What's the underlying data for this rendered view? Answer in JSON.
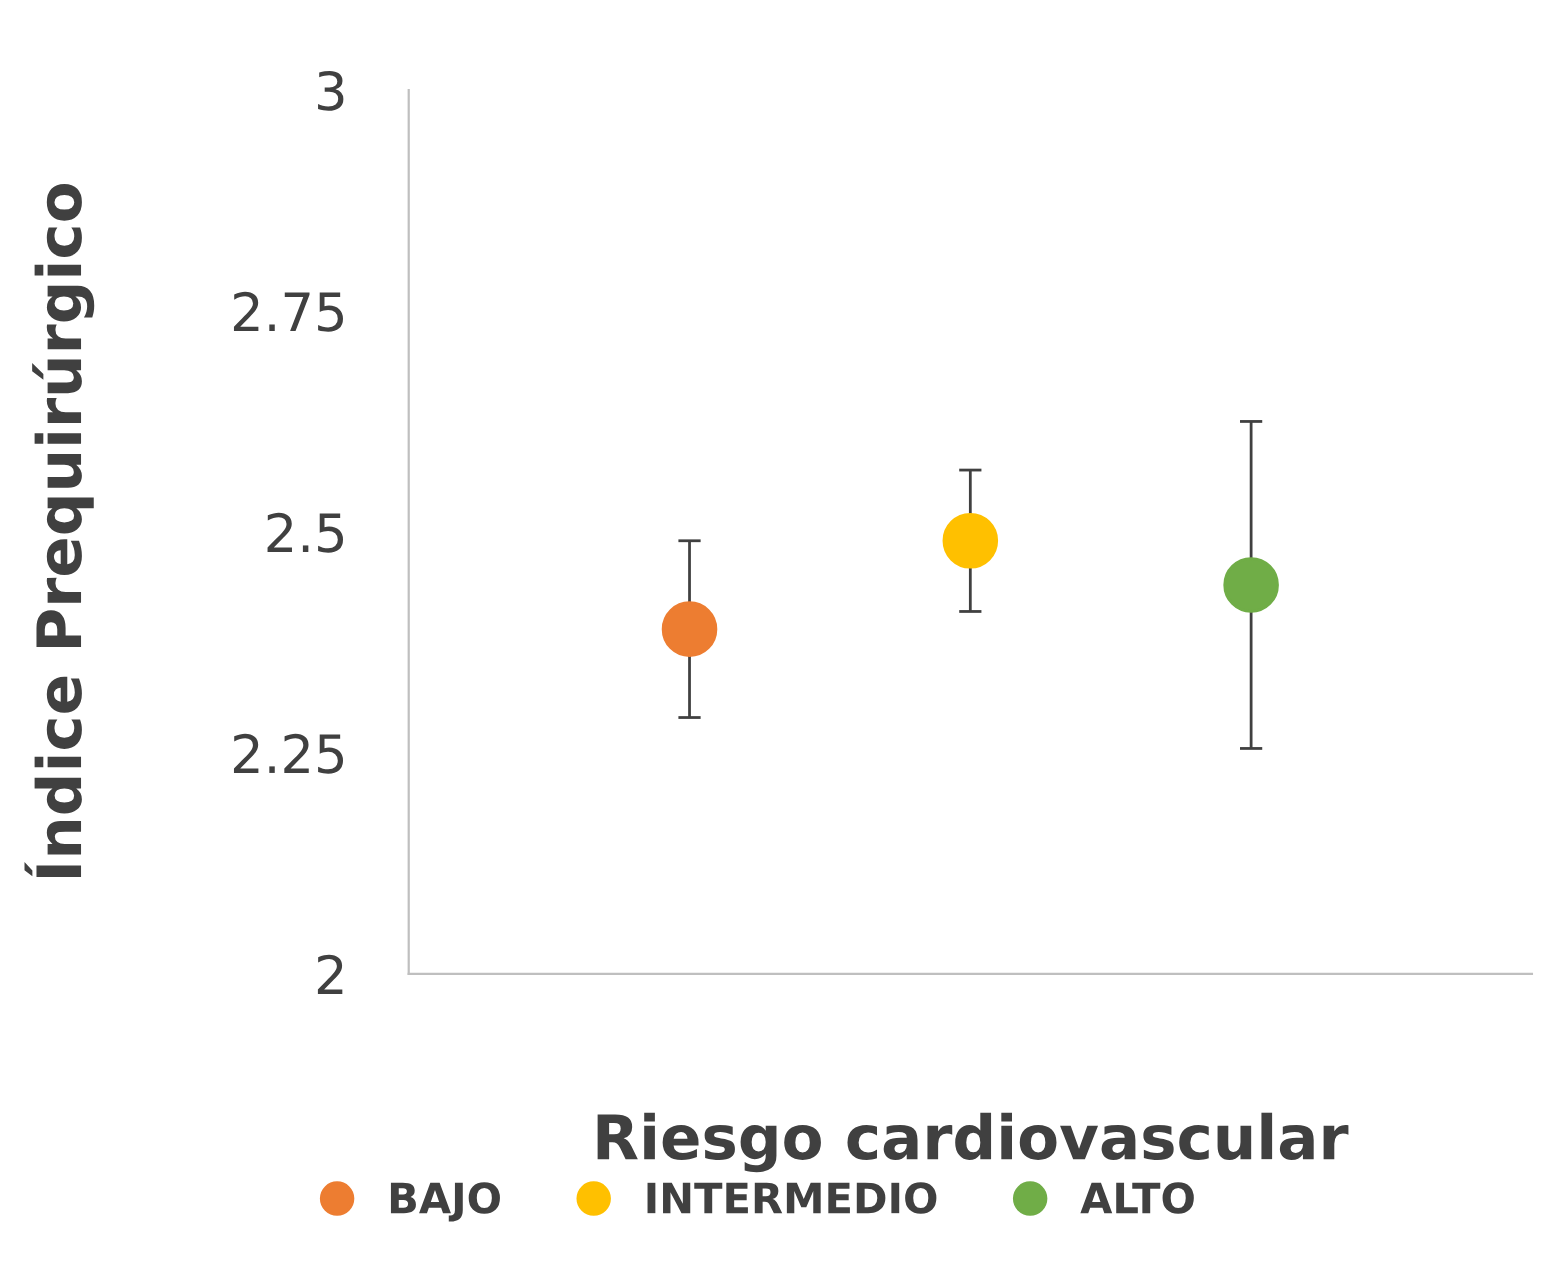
{
  "chart_data": {
    "type": "scatter",
    "xlabel": "Riesgo cardiovascular",
    "ylabel": "Índice Prequirúrgico",
    "categories": [
      null,
      null,
      null
    ],
    "ylim": [
      2,
      3
    ],
    "yticks": [
      2,
      {
        "value": 2.25,
        "label": "2.25"
      },
      {
        "value": 2.5,
        "label": "2.5"
      },
      {
        "value": 2.75,
        "label": "2.75"
      },
      3
    ],
    "tick_labels": "y",
    "marker": "circle",
    "grid": false,
    "legend": "bottom",
    "series": [
      {
        "name": "BAJO",
        "color": "#ed7d31",
        "values": [
          2.39,
          null,
          null
        ],
        "errors": [
          0.1,
          null,
          null
        ]
      },
      {
        "name": "INTERMEDIO",
        "color": "#ffc000",
        "values": [
          null,
          2.49,
          null
        ],
        "errors": [
          null,
          0.08,
          null
        ]
      },
      {
        "name": "ALTO",
        "color": "#70ad47",
        "values": [
          null,
          null,
          2.44
        ],
        "errors": [
          null,
          null,
          0.185
        ]
      }
    ]
  }
}
